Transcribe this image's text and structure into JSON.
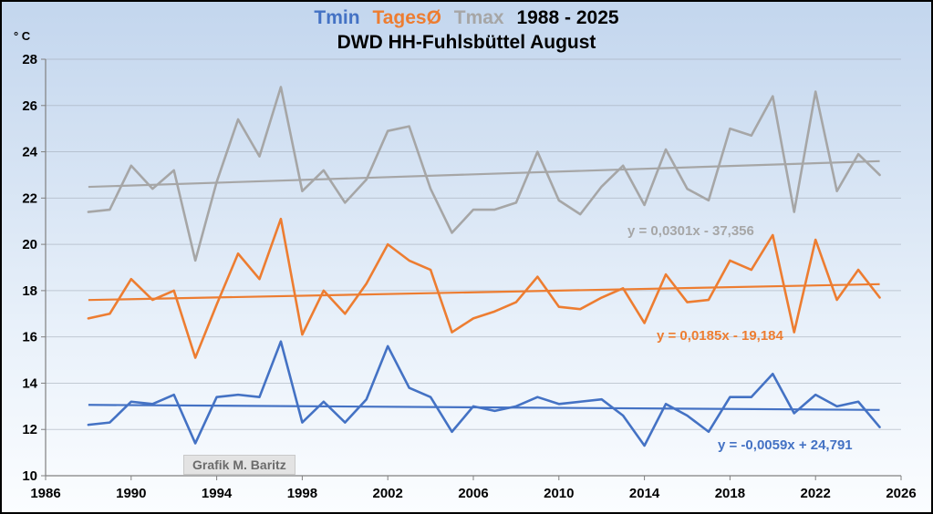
{
  "title": {
    "series_labels": [
      {
        "text": "Tmin",
        "color": "#4472C4"
      },
      {
        "text": "TagesØ",
        "color": "#ED7D31"
      },
      {
        "text": "Tmax",
        "color": "#A6A6A6"
      }
    ],
    "period": "1988 - 2025",
    "subtitle": "DWD HH-Fuhlsbüttel August"
  },
  "unit_label": "° C",
  "credit": "Grafik M. Baritz",
  "chart_data": {
    "type": "line",
    "title": "Tmin TagesØ Tmax 1988 - 2025",
    "subtitle": "DWD HH-Fuhlsbüttel August",
    "xlabel": "",
    "ylabel": "° C",
    "grid": true,
    "legend_position": "title-inline",
    "xlim": [
      1986,
      2026
    ],
    "ylim": [
      10,
      28
    ],
    "x_ticks": [
      1986,
      1990,
      1994,
      1998,
      2002,
      2006,
      2010,
      2014,
      2018,
      2022,
      2026
    ],
    "y_ticks": [
      10,
      12,
      14,
      16,
      18,
      20,
      22,
      24,
      26,
      28
    ],
    "x": [
      1988,
      1989,
      1990,
      1991,
      1992,
      1993,
      1994,
      1995,
      1996,
      1997,
      1998,
      1999,
      2000,
      2001,
      2002,
      2003,
      2004,
      2005,
      2006,
      2007,
      2008,
      2009,
      2010,
      2011,
      2012,
      2013,
      2014,
      2015,
      2016,
      2017,
      2018,
      2019,
      2020,
      2021,
      2022,
      2023,
      2024,
      2025
    ],
    "series": [
      {
        "name": "Tmax",
        "color": "#A6A6A6",
        "values": [
          21.4,
          21.5,
          23.4,
          22.4,
          23.2,
          19.3,
          22.7,
          25.4,
          23.8,
          26.8,
          22.3,
          23.2,
          21.8,
          22.8,
          24.9,
          25.1,
          22.4,
          20.5,
          21.5,
          21.5,
          21.8,
          24.0,
          21.9,
          21.3,
          22.5,
          23.4,
          21.7,
          24.1,
          22.4,
          21.9,
          25.0,
          24.7,
          26.4,
          21.4,
          26.6,
          22.3,
          23.9,
          23.0
        ],
        "trend": {
          "label": "y = 0,0301x - 37,356",
          "slope": 0.0301,
          "intercept": -37.356
        }
      },
      {
        "name": "TagesØ",
        "color": "#ED7D31",
        "values": [
          16.8,
          17.0,
          18.5,
          17.6,
          18.0,
          15.1,
          17.4,
          19.6,
          18.5,
          21.1,
          16.1,
          18.0,
          17.0,
          18.3,
          20.0,
          19.3,
          18.9,
          16.2,
          16.8,
          17.1,
          17.5,
          18.6,
          17.3,
          17.2,
          17.7,
          18.1,
          16.6,
          18.7,
          17.5,
          17.6,
          19.3,
          18.9,
          20.4,
          16.2,
          20.2,
          17.6,
          18.9,
          17.7
        ],
        "trend": {
          "label": "y = 0,0185x - 19,184",
          "slope": 0.0185,
          "intercept": -19.184
        }
      },
      {
        "name": "Tmin",
        "color": "#4472C4",
        "values": [
          12.2,
          12.3,
          13.2,
          13.1,
          13.5,
          11.4,
          13.4,
          13.5,
          13.4,
          15.8,
          12.3,
          13.2,
          12.3,
          13.3,
          15.6,
          13.8,
          13.4,
          11.9,
          13.0,
          12.8,
          13.0,
          13.4,
          13.1,
          13.2,
          13.3,
          12.6,
          11.3,
          13.1,
          12.6,
          11.9,
          13.4,
          13.4,
          14.4,
          12.7,
          13.5,
          13.0,
          13.2,
          12.1
        ],
        "trend": {
          "label": "y = -0,0059x + 24,791",
          "slope": -0.0059,
          "intercept": 24.791
        }
      }
    ]
  }
}
